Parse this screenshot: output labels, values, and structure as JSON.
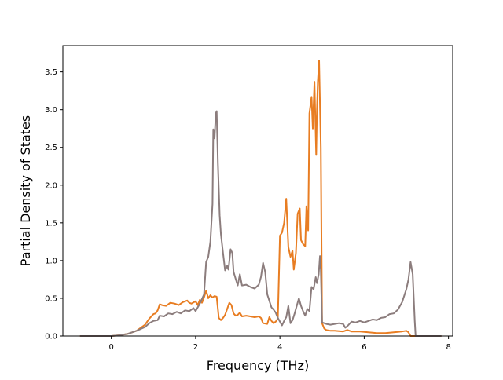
{
  "chart_data": {
    "type": "line",
    "title": "",
    "xlabel": "Frequency (THz)",
    "ylabel": "Partial Density of States",
    "xlim": [
      -1.15,
      8.1
    ],
    "ylim": [
      0.0,
      3.85
    ],
    "grid": false,
    "legend": "none",
    "x_ticks": [
      0,
      2,
      4,
      6,
      8
    ],
    "x_tick_labels": [
      "0",
      "2",
      "4",
      "6",
      "8"
    ],
    "y_ticks": [
      0.0,
      0.5,
      1.0,
      1.5,
      2.0,
      2.5,
      3.0,
      3.5
    ],
    "y_tick_labels": [
      "0.0",
      "0.5",
      "1.0",
      "1.5",
      "2.0",
      "2.5",
      "3.0",
      "3.5"
    ],
    "series": [
      {
        "color": "#e87d22",
        "points": [
          [
            -0.73,
            0.0
          ],
          [
            0.0,
            0.0
          ],
          [
            0.2,
            0.01
          ],
          [
            0.4,
            0.03
          ],
          [
            0.6,
            0.07
          ],
          [
            0.8,
            0.15
          ],
          [
            0.9,
            0.23
          ],
          [
            1.0,
            0.29
          ],
          [
            1.05,
            0.3
          ],
          [
            1.1,
            0.34
          ],
          [
            1.15,
            0.42
          ],
          [
            1.2,
            0.41
          ],
          [
            1.3,
            0.4
          ],
          [
            1.4,
            0.44
          ],
          [
            1.5,
            0.43
          ],
          [
            1.6,
            0.41
          ],
          [
            1.7,
            0.45
          ],
          [
            1.8,
            0.47
          ],
          [
            1.85,
            0.44
          ],
          [
            1.9,
            0.43
          ],
          [
            2.0,
            0.46
          ],
          [
            2.05,
            0.41
          ],
          [
            2.1,
            0.48
          ],
          [
            2.15,
            0.44
          ],
          [
            2.2,
            0.51
          ],
          [
            2.25,
            0.6
          ],
          [
            2.3,
            0.5
          ],
          [
            2.35,
            0.54
          ],
          [
            2.4,
            0.51
          ],
          [
            2.45,
            0.53
          ],
          [
            2.5,
            0.52
          ],
          [
            2.55,
            0.24
          ],
          [
            2.6,
            0.21
          ],
          [
            2.65,
            0.24
          ],
          [
            2.7,
            0.28
          ],
          [
            2.75,
            0.36
          ],
          [
            2.8,
            0.44
          ],
          [
            2.85,
            0.41
          ],
          [
            2.9,
            0.3
          ],
          [
            2.95,
            0.27
          ],
          [
            3.0,
            0.28
          ],
          [
            3.05,
            0.31
          ],
          [
            3.1,
            0.26
          ],
          [
            3.2,
            0.27
          ],
          [
            3.3,
            0.26
          ],
          [
            3.4,
            0.25
          ],
          [
            3.5,
            0.26
          ],
          [
            3.55,
            0.24
          ],
          [
            3.6,
            0.17
          ],
          [
            3.7,
            0.16
          ],
          [
            3.75,
            0.25
          ],
          [
            3.8,
            0.2
          ],
          [
            3.85,
            0.17
          ],
          [
            3.9,
            0.19
          ],
          [
            3.95,
            0.23
          ],
          [
            4.0,
            1.33
          ],
          [
            4.05,
            1.37
          ],
          [
            4.1,
            1.5
          ],
          [
            4.15,
            1.82
          ],
          [
            4.2,
            1.18
          ],
          [
            4.25,
            1.05
          ],
          [
            4.3,
            1.13
          ],
          [
            4.33,
            0.88
          ],
          [
            4.38,
            1.1
          ],
          [
            4.42,
            1.62
          ],
          [
            4.47,
            1.69
          ],
          [
            4.5,
            1.27
          ],
          [
            4.55,
            1.22
          ],
          [
            4.6,
            1.19
          ],
          [
            4.63,
            1.72
          ],
          [
            4.67,
            1.4
          ],
          [
            4.7,
            2.95
          ],
          [
            4.75,
            3.17
          ],
          [
            4.78,
            2.75
          ],
          [
            4.82,
            3.37
          ],
          [
            4.86,
            2.4
          ],
          [
            4.88,
            3.0
          ],
          [
            4.9,
            3.37
          ],
          [
            4.93,
            3.65
          ],
          [
            4.97,
            2.5
          ],
          [
            5.0,
            0.17
          ],
          [
            5.05,
            0.1
          ],
          [
            5.1,
            0.08
          ],
          [
            5.2,
            0.07
          ],
          [
            5.3,
            0.07
          ],
          [
            5.5,
            0.06
          ],
          [
            5.6,
            0.08
          ],
          [
            5.7,
            0.06
          ],
          [
            5.9,
            0.06
          ],
          [
            6.1,
            0.05
          ],
          [
            6.3,
            0.04
          ],
          [
            6.5,
            0.04
          ],
          [
            6.7,
            0.05
          ],
          [
            6.9,
            0.06
          ],
          [
            7.0,
            0.07
          ],
          [
            7.05,
            0.05
          ],
          [
            7.1,
            0.0
          ],
          [
            7.82,
            0.0
          ]
        ]
      },
      {
        "color": "#8c7d7d",
        "points": [
          [
            -0.73,
            0.0
          ],
          [
            0.0,
            0.0
          ],
          [
            0.2,
            0.01
          ],
          [
            0.4,
            0.03
          ],
          [
            0.6,
            0.07
          ],
          [
            0.8,
            0.12
          ],
          [
            0.9,
            0.17
          ],
          [
            1.0,
            0.2
          ],
          [
            1.1,
            0.21
          ],
          [
            1.15,
            0.27
          ],
          [
            1.25,
            0.26
          ],
          [
            1.35,
            0.3
          ],
          [
            1.45,
            0.29
          ],
          [
            1.55,
            0.32
          ],
          [
            1.65,
            0.3
          ],
          [
            1.75,
            0.34
          ],
          [
            1.85,
            0.33
          ],
          [
            1.95,
            0.37
          ],
          [
            2.0,
            0.33
          ],
          [
            2.1,
            0.43
          ],
          [
            2.2,
            0.55
          ],
          [
            2.25,
            0.98
          ],
          [
            2.3,
            1.05
          ],
          [
            2.35,
            1.25
          ],
          [
            2.4,
            1.75
          ],
          [
            2.42,
            2.74
          ],
          [
            2.45,
            2.62
          ],
          [
            2.48,
            2.95
          ],
          [
            2.5,
            2.98
          ],
          [
            2.53,
            2.28
          ],
          [
            2.57,
            1.6
          ],
          [
            2.6,
            1.35
          ],
          [
            2.65,
            1.1
          ],
          [
            2.7,
            0.87
          ],
          [
            2.75,
            0.93
          ],
          [
            2.78,
            0.88
          ],
          [
            2.83,
            1.15
          ],
          [
            2.87,
            1.1
          ],
          [
            2.9,
            0.85
          ],
          [
            2.95,
            0.76
          ],
          [
            3.0,
            0.67
          ],
          [
            3.05,
            0.82
          ],
          [
            3.1,
            0.67
          ],
          [
            3.2,
            0.68
          ],
          [
            3.3,
            0.65
          ],
          [
            3.4,
            0.63
          ],
          [
            3.5,
            0.68
          ],
          [
            3.55,
            0.78
          ],
          [
            3.6,
            0.97
          ],
          [
            3.65,
            0.85
          ],
          [
            3.7,
            0.55
          ],
          [
            3.8,
            0.38
          ],
          [
            3.85,
            0.35
          ],
          [
            3.9,
            0.31
          ],
          [
            3.95,
            0.24
          ],
          [
            4.0,
            0.19
          ],
          [
            4.05,
            0.14
          ],
          [
            4.1,
            0.2
          ],
          [
            4.15,
            0.25
          ],
          [
            4.2,
            0.4
          ],
          [
            4.25,
            0.17
          ],
          [
            4.3,
            0.21
          ],
          [
            4.35,
            0.3
          ],
          [
            4.45,
            0.5
          ],
          [
            4.5,
            0.4
          ],
          [
            4.55,
            0.33
          ],
          [
            4.6,
            0.27
          ],
          [
            4.65,
            0.36
          ],
          [
            4.7,
            0.33
          ],
          [
            4.75,
            0.65
          ],
          [
            4.8,
            0.62
          ],
          [
            4.85,
            0.78
          ],
          [
            4.88,
            0.7
          ],
          [
            4.92,
            0.82
          ],
          [
            4.95,
            1.06
          ],
          [
            4.97,
            0.88
          ],
          [
            5.0,
            0.18
          ],
          [
            5.1,
            0.16
          ],
          [
            5.2,
            0.15
          ],
          [
            5.3,
            0.16
          ],
          [
            5.4,
            0.17
          ],
          [
            5.5,
            0.16
          ],
          [
            5.55,
            0.11
          ],
          [
            5.6,
            0.13
          ],
          [
            5.7,
            0.19
          ],
          [
            5.8,
            0.18
          ],
          [
            5.9,
            0.2
          ],
          [
            6.0,
            0.18
          ],
          [
            6.1,
            0.2
          ],
          [
            6.2,
            0.22
          ],
          [
            6.3,
            0.21
          ],
          [
            6.4,
            0.24
          ],
          [
            6.5,
            0.25
          ],
          [
            6.6,
            0.29
          ],
          [
            6.7,
            0.3
          ],
          [
            6.8,
            0.35
          ],
          [
            6.9,
            0.45
          ],
          [
            7.0,
            0.62
          ],
          [
            7.05,
            0.75
          ],
          [
            7.1,
            0.98
          ],
          [
            7.15,
            0.82
          ],
          [
            7.2,
            0.2
          ],
          [
            7.22,
            0.0
          ],
          [
            7.82,
            0.0
          ]
        ]
      }
    ]
  }
}
